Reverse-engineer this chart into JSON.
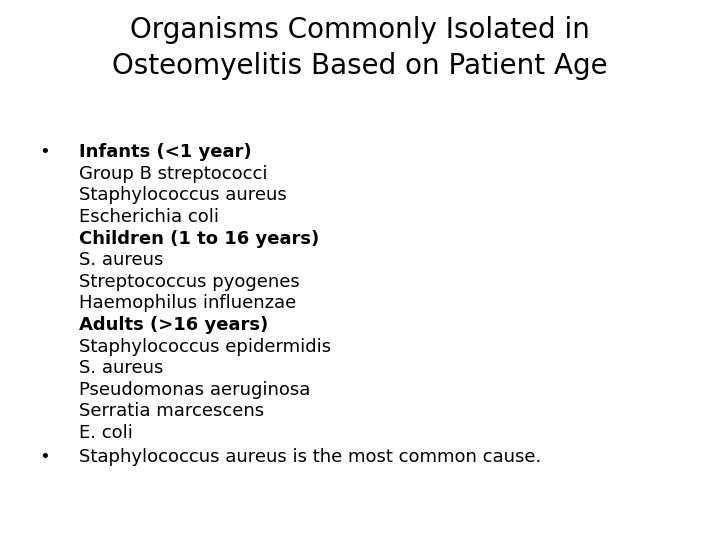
{
  "title_line1": "Organisms Commonly Isolated in",
  "title_line2": "Osteomyelitis Based on Patient Age",
  "title_fontsize": 20,
  "background_color": "#ffffff",
  "text_color": "#000000",
  "bullet1_header": "Infants (<1 year)",
  "bullet1_items": [
    "Group B streptococci",
    "Staphylococcus aureus",
    "Escherichia coli"
  ],
  "bullet1_sub1_header": "Children (1 to 16 years)",
  "bullet1_sub1_items": [
    "S. aureus",
    "Streptococcus pyogenes",
    "Haemophilus influenzae"
  ],
  "bullet1_sub2_header": "Adults (>16 years)",
  "bullet1_sub2_items": [
    "Staphylococcus epidermidis",
    "S. aureus",
    "Pseudomonas aeruginosa",
    "Serratia marcescens",
    "E. coli"
  ],
  "bullet2_text": "Staphylococcus aureus is the most common cause.",
  "body_fontsize": 13,
  "header_fontsize": 13,
  "bullet_fontsize": 13
}
